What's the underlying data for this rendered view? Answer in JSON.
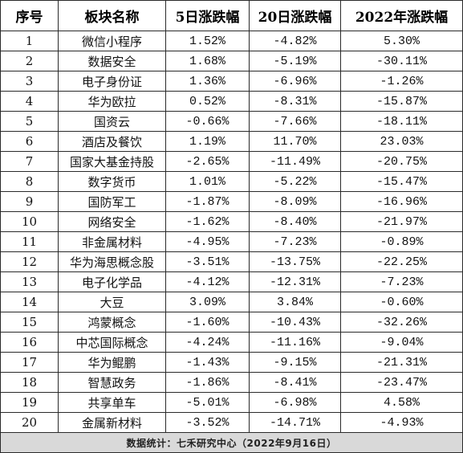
{
  "headers": [
    "序号",
    "板块名称",
    "5日涨跌幅",
    "20日涨跌幅",
    "2022年涨跌幅"
  ],
  "rows": [
    {
      "idx": "1",
      "name": "微信小程序",
      "d5": "1.52%",
      "d20": "-4.82%",
      "y2022": "5.30%"
    },
    {
      "idx": "2",
      "name": "数据安全",
      "d5": "1.68%",
      "d20": "-5.19%",
      "y2022": "-30.11%"
    },
    {
      "idx": "3",
      "name": "电子身份证",
      "d5": "1.36%",
      "d20": "-6.96%",
      "y2022": "-1.26%"
    },
    {
      "idx": "4",
      "name": "华为欧拉",
      "d5": "0.52%",
      "d20": "-8.31%",
      "y2022": "-15.87%"
    },
    {
      "idx": "5",
      "name": "国资云",
      "d5": "-0.66%",
      "d20": "-7.66%",
      "y2022": "-18.11%"
    },
    {
      "idx": "6",
      "name": "酒店及餐饮",
      "d5": "1.19%",
      "d20": "11.70%",
      "y2022": "23.03%"
    },
    {
      "idx": "7",
      "name": "国家大基金持股",
      "d5": "-2.65%",
      "d20": "-11.49%",
      "y2022": "-20.75%"
    },
    {
      "idx": "8",
      "name": "数字货币",
      "d5": "1.01%",
      "d20": "-5.22%",
      "y2022": "-15.47%"
    },
    {
      "idx": "9",
      "name": "国防军工",
      "d5": "-1.87%",
      "d20": "-8.09%",
      "y2022": "-16.96%"
    },
    {
      "idx": "10",
      "name": "网络安全",
      "d5": "-1.62%",
      "d20": "-8.40%",
      "y2022": "-21.97%"
    },
    {
      "idx": "11",
      "name": "非金属材料",
      "d5": "-4.95%",
      "d20": "-7.23%",
      "y2022": "-0.89%"
    },
    {
      "idx": "12",
      "name": "华为海思概念股",
      "d5": "-3.51%",
      "d20": "-13.75%",
      "y2022": "-22.25%"
    },
    {
      "idx": "13",
      "name": "电子化学品",
      "d5": "-4.12%",
      "d20": "-12.31%",
      "y2022": "-7.23%"
    },
    {
      "idx": "14",
      "name": "大豆",
      "d5": "3.09%",
      "d20": "3.84%",
      "y2022": "-0.60%"
    },
    {
      "idx": "15",
      "name": "鸿蒙概念",
      "d5": "-1.60%",
      "d20": "-10.43%",
      "y2022": "-32.26%"
    },
    {
      "idx": "16",
      "name": "中芯国际概念",
      "d5": "-4.24%",
      "d20": "-11.16%",
      "y2022": "-9.04%"
    },
    {
      "idx": "17",
      "name": "华为鲲鹏",
      "d5": "-1.43%",
      "d20": "-9.15%",
      "y2022": "-21.31%"
    },
    {
      "idx": "18",
      "name": "智慧政务",
      "d5": "-1.86%",
      "d20": "-8.41%",
      "y2022": "-23.47%"
    },
    {
      "idx": "19",
      "name": "共享单车",
      "d5": "-5.01%",
      "d20": "-6.98%",
      "y2022": "4.58%"
    },
    {
      "idx": "20",
      "name": "金属新材料",
      "d5": "-3.52%",
      "d20": "-14.71%",
      "y2022": "-4.93%"
    }
  ],
  "footer": "数据统计：七禾研究中心（2022年9月16日）"
}
